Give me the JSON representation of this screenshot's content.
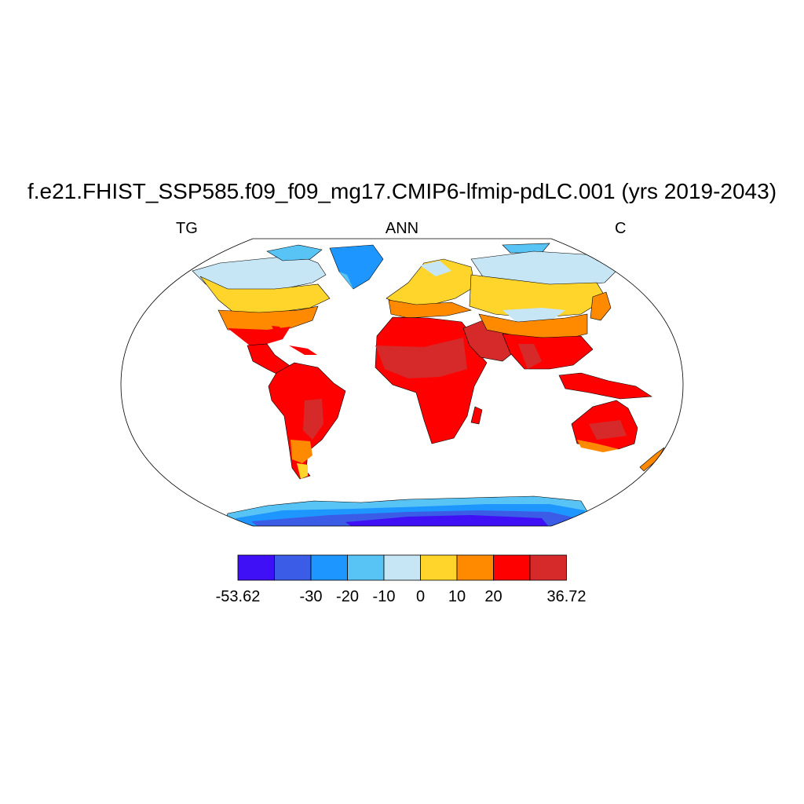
{
  "title": "f.e21.FHIST_SSP585.f09_f09_mg17.CMIP6-lfmip-pdLC.001 (yrs 2019-2043)",
  "subtitle_left": "TG",
  "subtitle_center": "ANN",
  "subtitle_right": "C",
  "colorbar": {
    "colors": [
      "#3f0ff5",
      "#3a5ce6",
      "#1e96ff",
      "#57c4f5",
      "#c6e6f6",
      "#ffd52b",
      "#ff8a00",
      "#ff0000",
      "#d62a2a"
    ],
    "tick_labels": [
      "-53.62",
      "-30",
      "-20",
      "-10",
      "0",
      "10",
      "20",
      "36.72"
    ]
  },
  "colors": {
    "ocean": "#ffffff",
    "coast": "#000000"
  }
}
